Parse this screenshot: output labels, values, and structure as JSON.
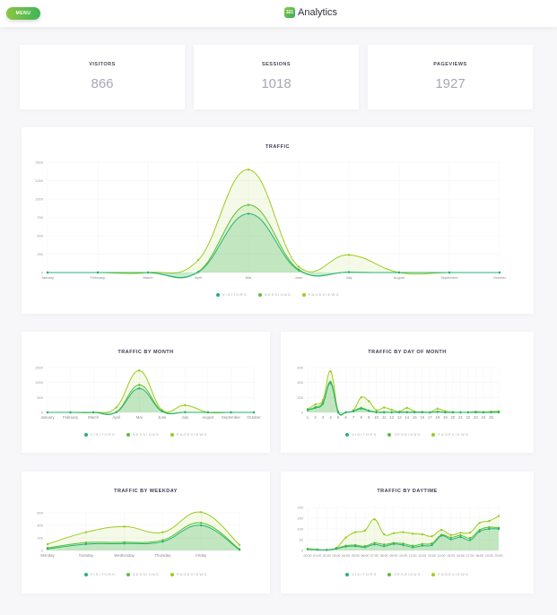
{
  "header": {
    "menu_label": "MENU",
    "logo_text": "321",
    "title": "Analytics"
  },
  "stats": [
    {
      "label": "VISITORS",
      "value": "866"
    },
    {
      "label": "SESSIONS",
      "value": "1018"
    },
    {
      "label": "PAGEVIEWS",
      "value": "1927"
    }
  ],
  "colors": {
    "visitors": "#22b573",
    "sessions": "#5cbf3a",
    "pageviews": "#9bcc1f"
  },
  "legend": [
    "VISITORS",
    "SESSIONS",
    "PAGEVIEWS"
  ],
  "chart_data": [
    {
      "id": "traffic",
      "type": "area",
      "title": "TRAFFIC",
      "ylim": [
        0,
        1500
      ],
      "yticks": [
        0,
        250,
        500,
        750,
        1000,
        1250,
        1500
      ],
      "categories": [
        "January",
        "February",
        "March",
        "April",
        "Mai",
        "June",
        "July",
        "August",
        "September",
        "October"
      ],
      "series": [
        {
          "name": "VISITORS",
          "values": [
            0,
            0,
            0,
            5,
            800,
            30,
            5,
            0,
            0,
            0
          ]
        },
        {
          "name": "SESSIONS",
          "values": [
            0,
            0,
            0,
            10,
            920,
            40,
            5,
            0,
            0,
            0
          ]
        },
        {
          "name": "PAGEVIEWS",
          "values": [
            0,
            0,
            0,
            170,
            1400,
            80,
            240,
            0,
            0,
            0
          ]
        }
      ]
    },
    {
      "id": "month",
      "type": "area",
      "title": "TRAFFIC BY MONTH",
      "ylim": [
        0,
        1500
      ],
      "yticks": [
        0,
        500,
        1000,
        1500
      ],
      "categories": [
        "January",
        "February",
        "March",
        "April",
        "Mai",
        "June",
        "July",
        "August",
        "September",
        "October"
      ],
      "series": [
        {
          "name": "VISITORS",
          "values": [
            0,
            0,
            0,
            5,
            800,
            30,
            5,
            0,
            0,
            0
          ]
        },
        {
          "name": "SESSIONS",
          "values": [
            0,
            0,
            0,
            10,
            920,
            40,
            5,
            0,
            0,
            0
          ]
        },
        {
          "name": "PAGEVIEWS",
          "values": [
            0,
            0,
            0,
            170,
            1400,
            80,
            240,
            0,
            0,
            0
          ]
        }
      ]
    },
    {
      "id": "day",
      "type": "area",
      "title": "TRAFFIC BY DAY OF MONTH",
      "ylim": [
        0,
        600
      ],
      "yticks": [
        0,
        200,
        400,
        600
      ],
      "categories": [
        "1",
        "2",
        "3",
        "4",
        "5",
        "6",
        "7",
        "8",
        "9",
        "10",
        "11",
        "12",
        "13",
        "14",
        "15",
        "16",
        "17",
        "18",
        "19",
        "20",
        "21",
        "22",
        "23",
        "24",
        "25",
        ""
      ],
      "series": [
        {
          "name": "VISITORS",
          "values": [
            30,
            60,
            115,
            390,
            0,
            0,
            15,
            50,
            20,
            0,
            0,
            0,
            0,
            0,
            0,
            0,
            0,
            5,
            0,
            0,
            0,
            0,
            0,
            0,
            0,
            0
          ]
        },
        {
          "name": "SESSIONS",
          "values": [
            35,
            70,
            130,
            410,
            5,
            0,
            20,
            60,
            25,
            5,
            5,
            0,
            5,
            5,
            5,
            5,
            0,
            10,
            0,
            0,
            0,
            0,
            5,
            0,
            5,
            5
          ]
        },
        {
          "name": "PAGEVIEWS",
          "values": [
            45,
            105,
            165,
            550,
            15,
            0,
            30,
            200,
            150,
            30,
            65,
            35,
            10,
            60,
            10,
            5,
            0,
            50,
            15,
            5,
            0,
            0,
            10,
            5,
            10,
            15
          ]
        }
      ]
    },
    {
      "id": "weekday",
      "type": "area",
      "title": "TRAFFIC BY WEEKDAY",
      "ylim": [
        0,
        600
      ],
      "yticks": [
        0,
        200,
        400,
        600
      ],
      "categories": [
        "Monday",
        "Tuesday",
        "Wednesday",
        "Thursday",
        "Friday",
        ""
      ],
      "series": [
        {
          "name": "VISITORS",
          "values": [
            25,
            100,
            110,
            140,
            400,
            10
          ]
        },
        {
          "name": "SESSIONS",
          "values": [
            40,
            125,
            130,
            165,
            440,
            20
          ]
        },
        {
          "name": "PAGEVIEWS",
          "values": [
            100,
            290,
            380,
            290,
            610,
            90
          ]
        }
      ]
    },
    {
      "id": "daytime",
      "type": "area",
      "title": "TRAFFIC BY DAYTIME",
      "ylim": [
        0,
        200
      ],
      "yticks": [
        0,
        50,
        100,
        150,
        200
      ],
      "categories": [
        "00:00",
        "01:00",
        "02:00",
        "03:00",
        "04:00",
        "05:00",
        "06:00",
        "07:00",
        "08:00",
        "09:00",
        "10:00",
        "11:00",
        "12:00",
        "13:00",
        "14:00",
        "15:00",
        "16:00",
        "17:00",
        "18:00",
        "19:00",
        "20:00"
      ],
      "series": [
        {
          "name": "VISITORS",
          "values": [
            5,
            3,
            2,
            8,
            18,
            20,
            15,
            28,
            20,
            30,
            25,
            15,
            22,
            25,
            68,
            52,
            62,
            48,
            88,
            100,
            100
          ]
        },
        {
          "name": "SESSIONS",
          "values": [
            6,
            4,
            3,
            10,
            22,
            25,
            20,
            35,
            28,
            35,
            32,
            22,
            30,
            33,
            72,
            60,
            70,
            58,
            95,
            108,
            105
          ]
        },
        {
          "name": "PAGEVIEWS",
          "values": [
            8,
            5,
            3,
            12,
            60,
            85,
            93,
            145,
            75,
            80,
            85,
            78,
            75,
            66,
            95,
            72,
            82,
            83,
            128,
            137,
            160
          ]
        }
      ]
    }
  ]
}
